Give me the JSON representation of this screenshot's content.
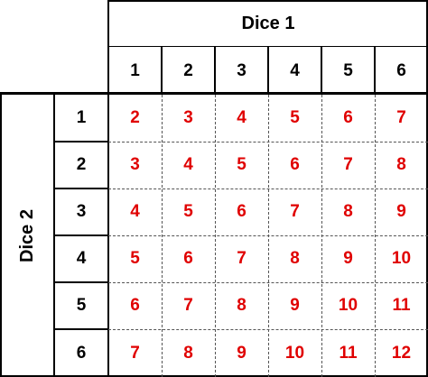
{
  "dice1": {
    "title": "Dice 1",
    "values": [
      "1",
      "2",
      "3",
      "4",
      "5",
      "6"
    ]
  },
  "dice2": {
    "title": "Dice 2",
    "values": [
      "1",
      "2",
      "3",
      "4",
      "5",
      "6"
    ]
  },
  "sums": [
    [
      "2",
      "3",
      "4",
      "5",
      "6",
      "7"
    ],
    [
      "3",
      "4",
      "5",
      "6",
      "7",
      "8"
    ],
    [
      "4",
      "5",
      "6",
      "7",
      "8",
      "9"
    ],
    [
      "5",
      "6",
      "7",
      "8",
      "9",
      "10"
    ],
    [
      "6",
      "7",
      "8",
      "9",
      "10",
      "11"
    ],
    [
      "7",
      "8",
      "9",
      "10",
      "11",
      "12"
    ]
  ],
  "colors": {
    "sum_text": "#e00000",
    "header_text": "#000000",
    "border": "#000000"
  }
}
